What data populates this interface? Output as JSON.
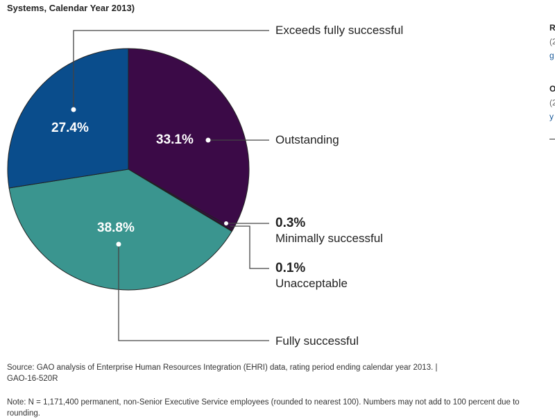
{
  "subtitle": "Systems, Calendar Year 2013)",
  "chart_data": {
    "type": "pie",
    "slices": [
      {
        "label": "Outstanding",
        "value": 33.1,
        "display": "33.1%",
        "color": "#3b0a47"
      },
      {
        "label": "Minimally successful",
        "value": 0.3,
        "display": "0.3%",
        "color": "#3b0a47"
      },
      {
        "label": "Unacceptable",
        "value": 0.1,
        "display": "0.1%",
        "color": "#3b0a47"
      },
      {
        "label": "Fully successful",
        "value": 38.8,
        "display": "38.8%",
        "color": "#3a958f"
      },
      {
        "label": "Exceeds fully successful",
        "value": 27.4,
        "display": "27.4%",
        "color": "#0a4d8c"
      }
    ],
    "start": "top",
    "direction": "clockwise"
  },
  "source": "Source: GAO analysis of Enterprise Human Resources Integration (EHRI) data, rating period ending calendar year 2013. | GAO-16-520R",
  "note": "Note: N = 1,171,400 permanent, non-Senior Executive Service employees (rounded to nearest 100). Numbers may not add to 100 percent due to rounding.",
  "sidebar": {
    "items": [
      {
        "title": "R",
        "meta": "(2",
        "link": "g"
      },
      {
        "title": "O",
        "meta": "(2",
        "link": "y"
      }
    ]
  }
}
